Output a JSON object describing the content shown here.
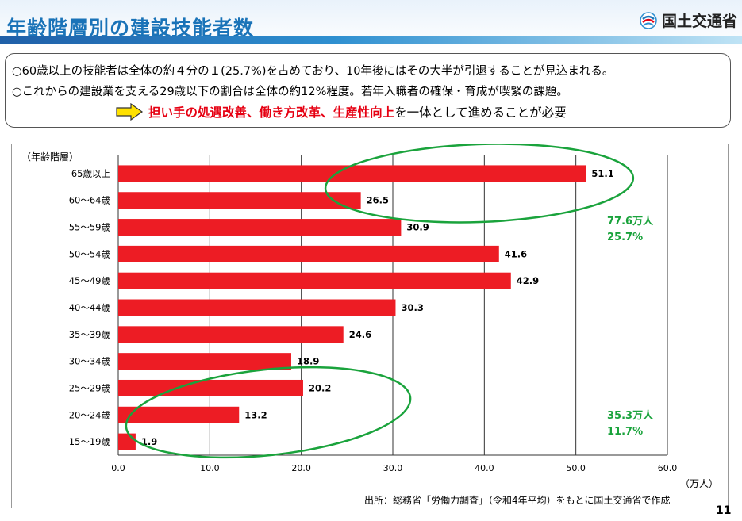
{
  "header": {
    "title": "年齢階層別の建設技能者数",
    "logo_text": "国土交通省",
    "logo_icon": "mlit-logo-icon"
  },
  "summary": {
    "line1": "○60歳以上の技能者は全体の約４分の１(25.7%)を占めており、10年後にはその大半が引退することが見込まれる。",
    "line2": "○これからの建設業を支える29歳以下の割合は全体の約12%程度。若年入職者の確保・育成が喫緊の課題。",
    "line3_emph1": "担い手の処遇改善",
    "line3_sep1": "、",
    "line3_emph2": "働き方改革",
    "line3_sep2": "、",
    "line3_emph3": "生産性向上",
    "line3_rest": "を一体として進めることが必要",
    "arrow_icon": "right-arrow-icon"
  },
  "chart_data": {
    "type": "bar",
    "orientation": "horizontal",
    "ylabel": "（年齢階層）",
    "xlabel": "（万人）",
    "categories": [
      "65歳以上",
      "60～64歳",
      "55～59歳",
      "50～54歳",
      "45～49歳",
      "40～44歳",
      "35～39歳",
      "30～34歳",
      "25～29歳",
      "20～24歳",
      "15～19歳"
    ],
    "values": [
      51.1,
      26.5,
      30.9,
      41.6,
      42.9,
      30.3,
      24.6,
      18.9,
      20.2,
      13.2,
      1.9
    ],
    "value_labels": [
      "51.1",
      "26.5",
      "30.9",
      "41.6",
      "42.9",
      "30.3",
      "24.6",
      "18.9",
      "20.2",
      "13.2",
      "1.9"
    ],
    "xlim": [
      0,
      60
    ],
    "xticks": [
      "0.0",
      "10.0",
      "20.0",
      "30.0",
      "40.0",
      "50.0",
      "60.0"
    ],
    "grid": true,
    "bar_color": "#ed1c24",
    "annotations": [
      {
        "line1": "77.6万人",
        "line2": "25.7%",
        "color": "#1aa33c"
      },
      {
        "line1": "35.3万人",
        "line2": "11.7%",
        "color": "#1aa33c"
      }
    ]
  },
  "footer": {
    "source": "出所：総務省「労働力調査」（令和4年平均）をもとに国土交通省で作成",
    "page_number": "11"
  }
}
